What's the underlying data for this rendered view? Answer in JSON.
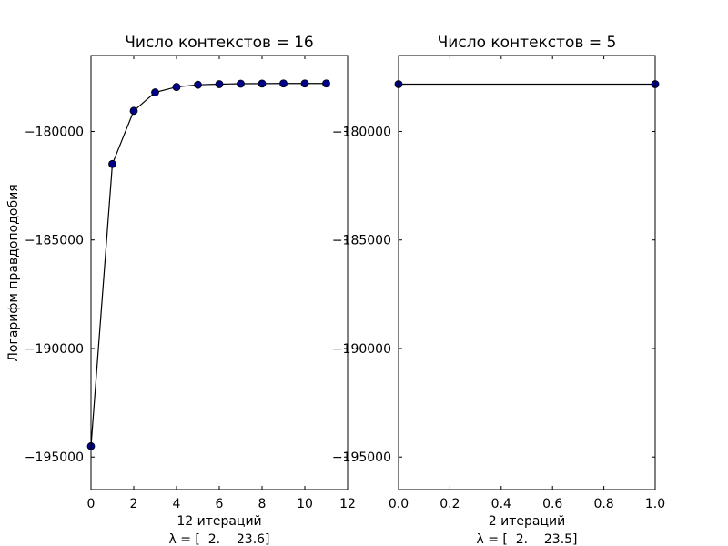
{
  "chart_data": [
    {
      "type": "line",
      "title": "Число контекстов = 16",
      "xlabel": "12 итераций",
      "xlabel2": "λ = [  2.    23.6]",
      "ylabel": "Логарифм правдоподобия",
      "xlim": [
        0,
        12
      ],
      "ylim": [
        -196500,
        -176500
      ],
      "xticks": [
        0,
        2,
        4,
        6,
        8,
        10,
        12
      ],
      "xtick_labels": [
        "0",
        "2",
        "4",
        "6",
        "8",
        "10",
        "12"
      ],
      "yticks": [
        -180000,
        -185000,
        -190000,
        -195000
      ],
      "ytick_labels": [
        "−180000",
        "−185000",
        "−190000",
        "−195000"
      ],
      "grid": false,
      "series": [
        {
          "x": [
            0,
            1,
            2,
            3,
            4,
            5,
            6,
            7,
            8,
            9,
            10,
            11
          ],
          "y": [
            -194500,
            -181500,
            -179050,
            -178200,
            -177950,
            -177850,
            -177820,
            -177800,
            -177795,
            -177790,
            -177790,
            -177790
          ]
        }
      ]
    },
    {
      "type": "line",
      "title": "Число контекстов = 5",
      "xlabel": "2 итераций",
      "xlabel2": "λ = [  2.    23.5]",
      "ylabel": "",
      "xlim": [
        0,
        1
      ],
      "ylim": [
        -196500,
        -176500
      ],
      "xticks": [
        0,
        0.2,
        0.4,
        0.6,
        0.8,
        1.0
      ],
      "xtick_labels": [
        "0.0",
        "0.2",
        "0.4",
        "0.6",
        "0.8",
        "1.0"
      ],
      "yticks": [
        -180000,
        -185000,
        -190000,
        -195000
      ],
      "ytick_labels": [
        "−180000",
        "−185000",
        "−190000",
        "−195000"
      ],
      "grid": false,
      "series": [
        {
          "x": [
            0,
            1
          ],
          "y": [
            -177820,
            -177820
          ]
        }
      ]
    }
  ],
  "colors": {
    "line": "#000000",
    "marker_fill": "#00008b",
    "marker_edge": "#000000"
  }
}
